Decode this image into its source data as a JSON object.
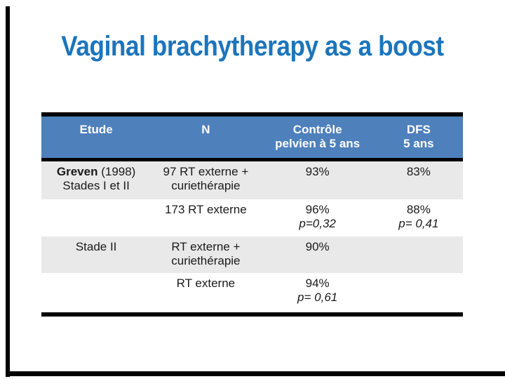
{
  "title": "Vaginal brachytherapy as a boost",
  "colors": {
    "title_blue": "#1b75bc",
    "header_blue": "#4e80bc",
    "row_gray": "#e9e9e9",
    "rule_black": "#000000",
    "header_text": "#ffffff"
  },
  "table": {
    "headers": {
      "etude": {
        "l1": "Etude",
        "l2": ""
      },
      "n": {
        "l1": "N",
        "l2": ""
      },
      "controle": {
        "l1": "Contrôle",
        "l2": "pelvien à 5 ans"
      },
      "dfs": {
        "l1": "DFS",
        "l2": "5 ans"
      }
    },
    "rows": [
      {
        "etude_bold": "Greven",
        "etude_reg": " (1998)",
        "etude_l2": "Stades I et II",
        "n_l1": "97 RT externe +",
        "n_l2": "curiethérapie",
        "controle": "93%",
        "controle_p": "",
        "dfs": "83%",
        "dfs_p": ""
      },
      {
        "etude_l1": "",
        "n_l1": "173 RT externe",
        "n_l2": "",
        "controle": "96%",
        "controle_p": "p=0,32",
        "dfs": "88%",
        "dfs_p": "p= 0,41"
      },
      {
        "etude_l1": "Stade II",
        "n_l1": "RT externe +",
        "n_l2": "curiethérapie",
        "controle": "90%",
        "controle_p": "",
        "dfs": "",
        "dfs_p": ""
      },
      {
        "etude_l1": "",
        "n_l1": "RT externe",
        "n_l2": "",
        "controle": "94%",
        "controle_p": "p= 0,61",
        "dfs": "",
        "dfs_p": ""
      }
    ]
  }
}
